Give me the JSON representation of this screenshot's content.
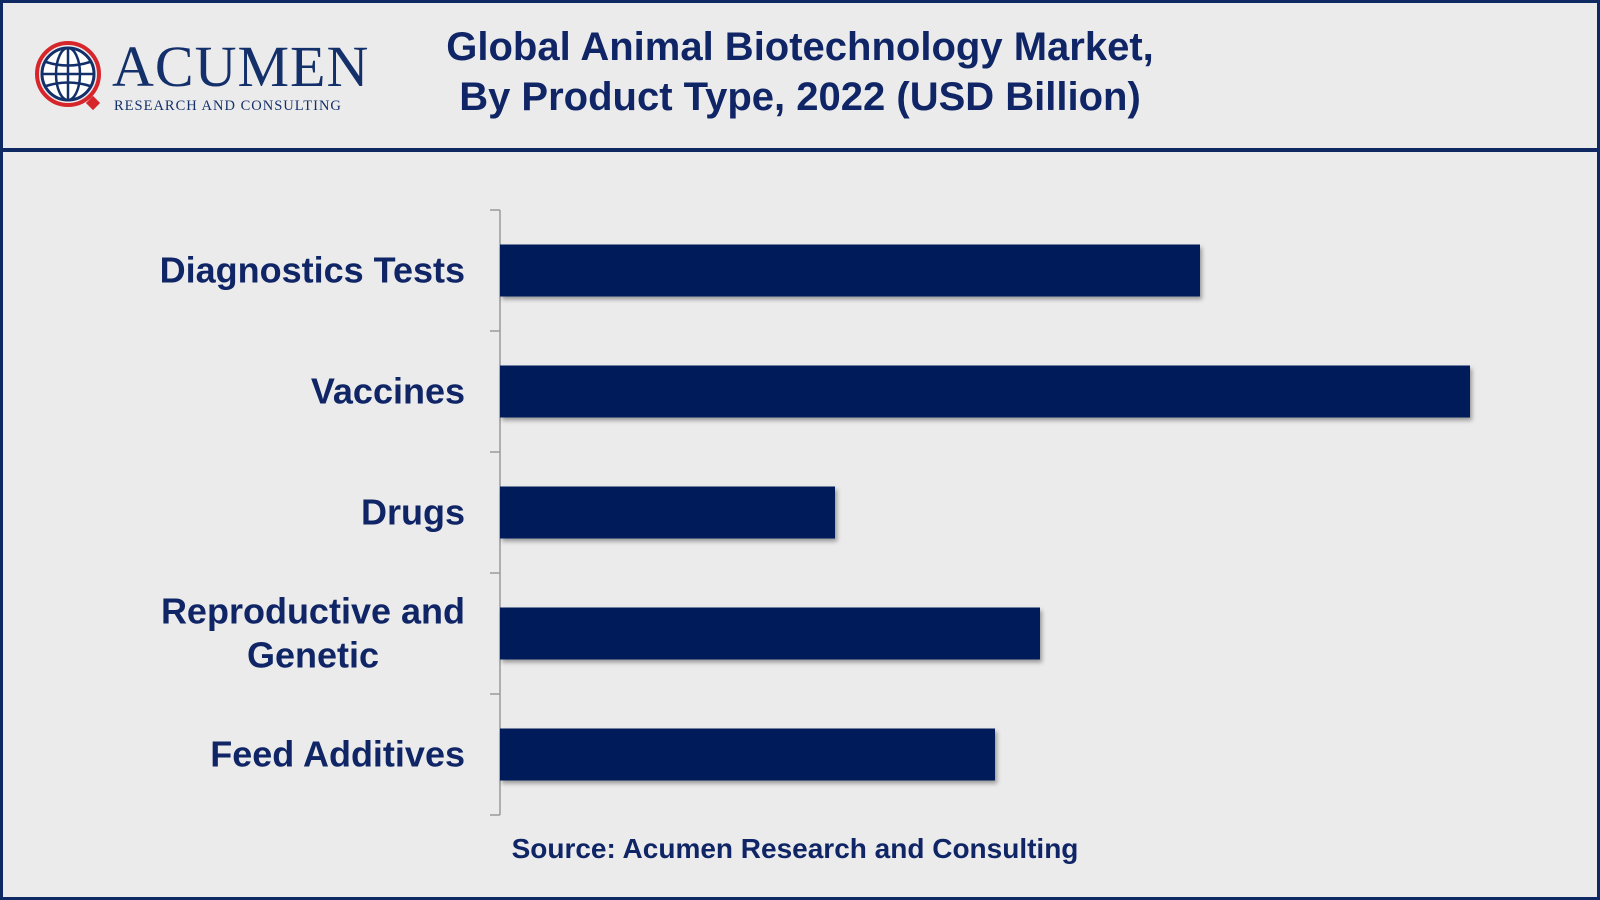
{
  "logo": {
    "name": "ACUMEN",
    "tagline": "RESEARCH AND CONSULTING"
  },
  "title_lines": [
    "Global Animal Biotechnology Market,",
    "By Product Type, 2022 (USD Billion)"
  ],
  "source": "Source: Acumen Research and Consulting",
  "colors": {
    "bar": "#001b5a",
    "text": "#0f2566",
    "logo_red": "#d6252b",
    "logo_blue": "#14306b"
  },
  "chart_data": {
    "type": "bar",
    "orientation": "horizontal",
    "title": "Global Animal Biotechnology Market, By Product Type, 2022 (USD Billion)",
    "categories": [
      [
        "Diagnostics Tests"
      ],
      [
        "Vaccines"
      ],
      [
        "Drugs"
      ],
      [
        "Reproductive and",
        "Genetic"
      ],
      [
        "Feed Additives"
      ]
    ],
    "values": [
      7.0,
      9.7,
      3.35,
      5.4,
      4.95
    ],
    "xlim": [
      0,
      10
    ],
    "xlabel": "",
    "ylabel": "",
    "grid": false,
    "legend": "none"
  }
}
